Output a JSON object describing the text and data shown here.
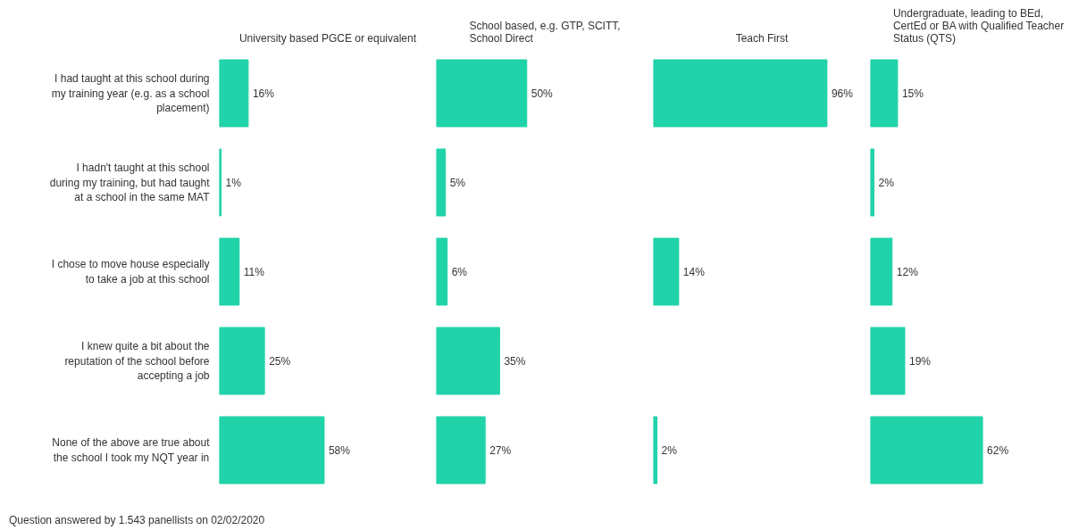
{
  "chart_data": [
    {
      "type": "bar",
      "orientation": "horizontal",
      "title": "University based PGCE or equivalent",
      "categories": [
        "I had taught at this school during my training year (e.g. as a school placement)",
        "I hadn't taught at this school during my training, but had taught at a school in the same MAT",
        "I chose to move house especially to take a job at this school",
        "I knew quite a bit about the reputation of the school before accepting a job",
        "None of the above are true about the school I took my NQT year in"
      ],
      "values": [
        16,
        1,
        11,
        25,
        58
      ],
      "value_labels": [
        "16%",
        "1%",
        "11%",
        "25%",
        "58%"
      ],
      "color": "#20d3a8",
      "tick_labels": "y",
      "annotations": [
        "Question answered by 1.543 panellists on 02/02/2020"
      ]
    },
    {
      "type": "bar",
      "orientation": "horizontal",
      "title": "School based, e.g. GTP, SCITT, School Direct",
      "categories": [
        "I had taught at this school during my training year (e.g. as a school placement)",
        "I hadn't taught at this school during my training, but had taught at a school in the same MAT",
        "I chose to move house especially to take a job at this school",
        "I knew quite a bit about the reputation of the school before accepting a job",
        "None of the above are true about the school I took my NQT year in"
      ],
      "values": [
        50,
        5,
        6,
        35,
        27
      ],
      "value_labels": [
        "50%",
        "5%",
        "6%",
        "35%",
        "27%"
      ],
      "color": "#20d3a8",
      "tick_labels": false
    },
    {
      "type": "bar",
      "orientation": "horizontal",
      "title": "Teach First",
      "categories": [
        "I had taught at this school during my training year (e.g. as a school placement)",
        "I hadn't taught at this school during my training, but had taught at a school in the same MAT",
        "I chose to move house especially to take a job at this school",
        "I knew quite a bit about the reputation of the school before accepting a job",
        "None of the above are true about the school I took my NQT year in"
      ],
      "values": [
        96,
        null,
        14,
        null,
        2
      ],
      "value_labels": [
        "96%",
        null,
        "14%",
        null,
        "2%"
      ],
      "color": "#20d3a8",
      "tick_labels": false
    },
    {
      "type": "bar",
      "orientation": "horizontal",
      "title": "Undergraduate, leading to BEd, CertEd or BA with Qualified Teacher Status (QTS)",
      "categories": [
        "I had taught at this school during my training year (e.g. as a school placement)",
        "I hadn't taught at this school during my training, but had taught at a school in the same MAT",
        "I chose to move house especially to take a job at this school",
        "I knew quite a bit about the reputation of the school before accepting a job",
        "None of the above are true about the school I took my NQT year in"
      ],
      "values": [
        15,
        2,
        12,
        19,
        62
      ],
      "value_labels": [
        "15%",
        "2%",
        "12%",
        "19%",
        "62%"
      ],
      "color": "#20d3a8",
      "tick_labels": false
    }
  ]
}
